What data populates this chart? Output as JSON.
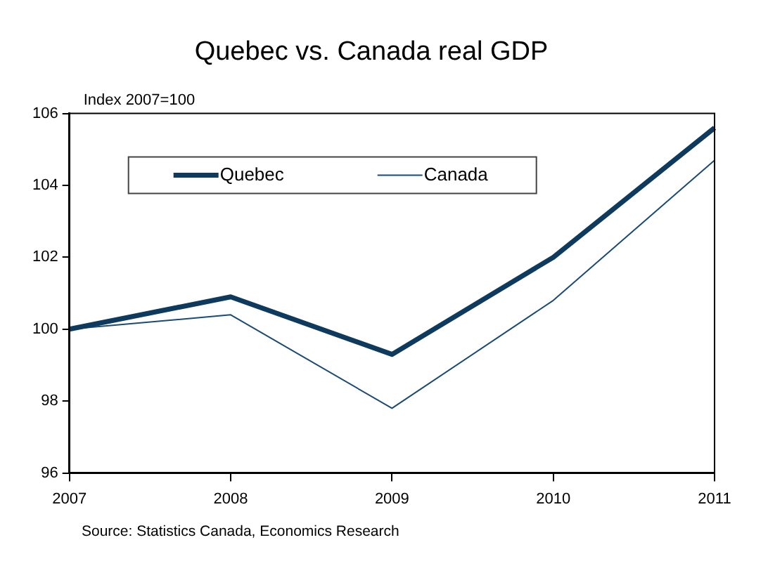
{
  "chart_data": {
    "type": "line",
    "title": "Quebec vs. Canada real GDP",
    "ylabel": "Index 2007=100",
    "categories": [
      "2007",
      "2008",
      "2009",
      "2010",
      "2011"
    ],
    "series": [
      {
        "name": "Quebec",
        "color": "#0e3a5e",
        "values": [
          100,
          100.9,
          99.3,
          102.0,
          105.6
        ]
      },
      {
        "name": "Canada",
        "color": "#1a4a75",
        "values": [
          100,
          100.4,
          97.8,
          100.8,
          104.7
        ]
      }
    ],
    "ylim": [
      96,
      106
    ],
    "yticks": [
      96,
      98,
      100,
      102,
      104,
      106
    ],
    "grid": false,
    "legend": "top left",
    "marker": "none",
    "line_style": "solid",
    "annotations": [
      "Source: Statistics Canada, Economics Research"
    ]
  }
}
